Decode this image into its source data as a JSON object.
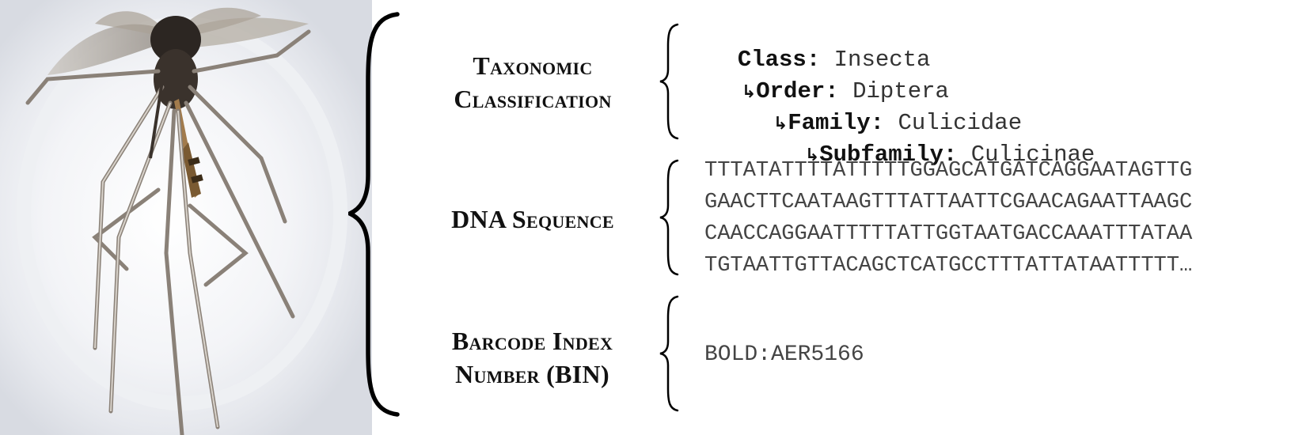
{
  "headings": {
    "taxonomy": [
      "Taxonomic",
      "Classification"
    ],
    "dna": [
      "DNA Sequence"
    ],
    "bin": [
      "Barcode Index",
      "Number (BIN)"
    ]
  },
  "taxonomy": [
    {
      "rank": "Class",
      "value": "Insecta"
    },
    {
      "rank": "Order",
      "value": "Diptera"
    },
    {
      "rank": "Family",
      "value": "Culicidae"
    },
    {
      "rank": "Subfamily",
      "value": "Culicinae"
    }
  ],
  "dna_lines": [
    "TTTATATTTTATTTTTGGAGCATGATCAGGAATAGTTG",
    "GAACTTCAATAAGTTTATTAATTCGAACAGAATTAAGC",
    "CAACCAGGAATTTTTATTGGTAATGACCAAATTTATAA",
    "TGTAATTGTTACAGCTCATGCCTTTATTATAATTTTT…"
  ],
  "bin": "BOLD:AER5166",
  "icons": {
    "specimen": "mosquito-specimen-photo",
    "arrow": "corner-arrow-icon"
  },
  "colors": {
    "text": "#111111",
    "mono_text": "#444444"
  }
}
